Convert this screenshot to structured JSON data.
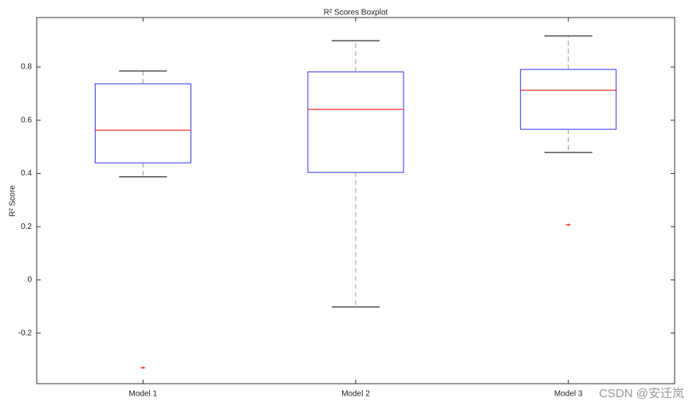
{
  "chart_data": {
    "type": "boxplot",
    "title": "R² Scores Boxplot",
    "y_label": "R² Score",
    "categories": [
      "Model 1",
      "Model 2",
      "Model 3"
    ],
    "boxes": [
      {
        "whisker_low": 0.387,
        "q1": 0.44,
        "median": 0.563,
        "q3": 0.737,
        "whisker_high": 0.785,
        "outliers": [
          -0.33
        ]
      },
      {
        "whisker_low": -0.102,
        "q1": 0.404,
        "median": 0.641,
        "q3": 0.782,
        "whisker_high": 0.899,
        "outliers": []
      },
      {
        "whisker_low": 0.479,
        "q1": 0.566,
        "median": 0.713,
        "q3": 0.791,
        "whisker_high": 0.917,
        "outliers": [
          0.207
        ]
      }
    ],
    "box_color": "#3333ff",
    "median_color": "#ff0000",
    "whisker_color": "#999999",
    "outlier_color": "#ff0000",
    "ylim": [
      -0.39,
      0.986
    ],
    "yticks": [
      -0.2,
      0,
      0.2,
      0.4,
      0.6,
      0.8
    ],
    "watermark": "CSDN @安迁岚"
  }
}
